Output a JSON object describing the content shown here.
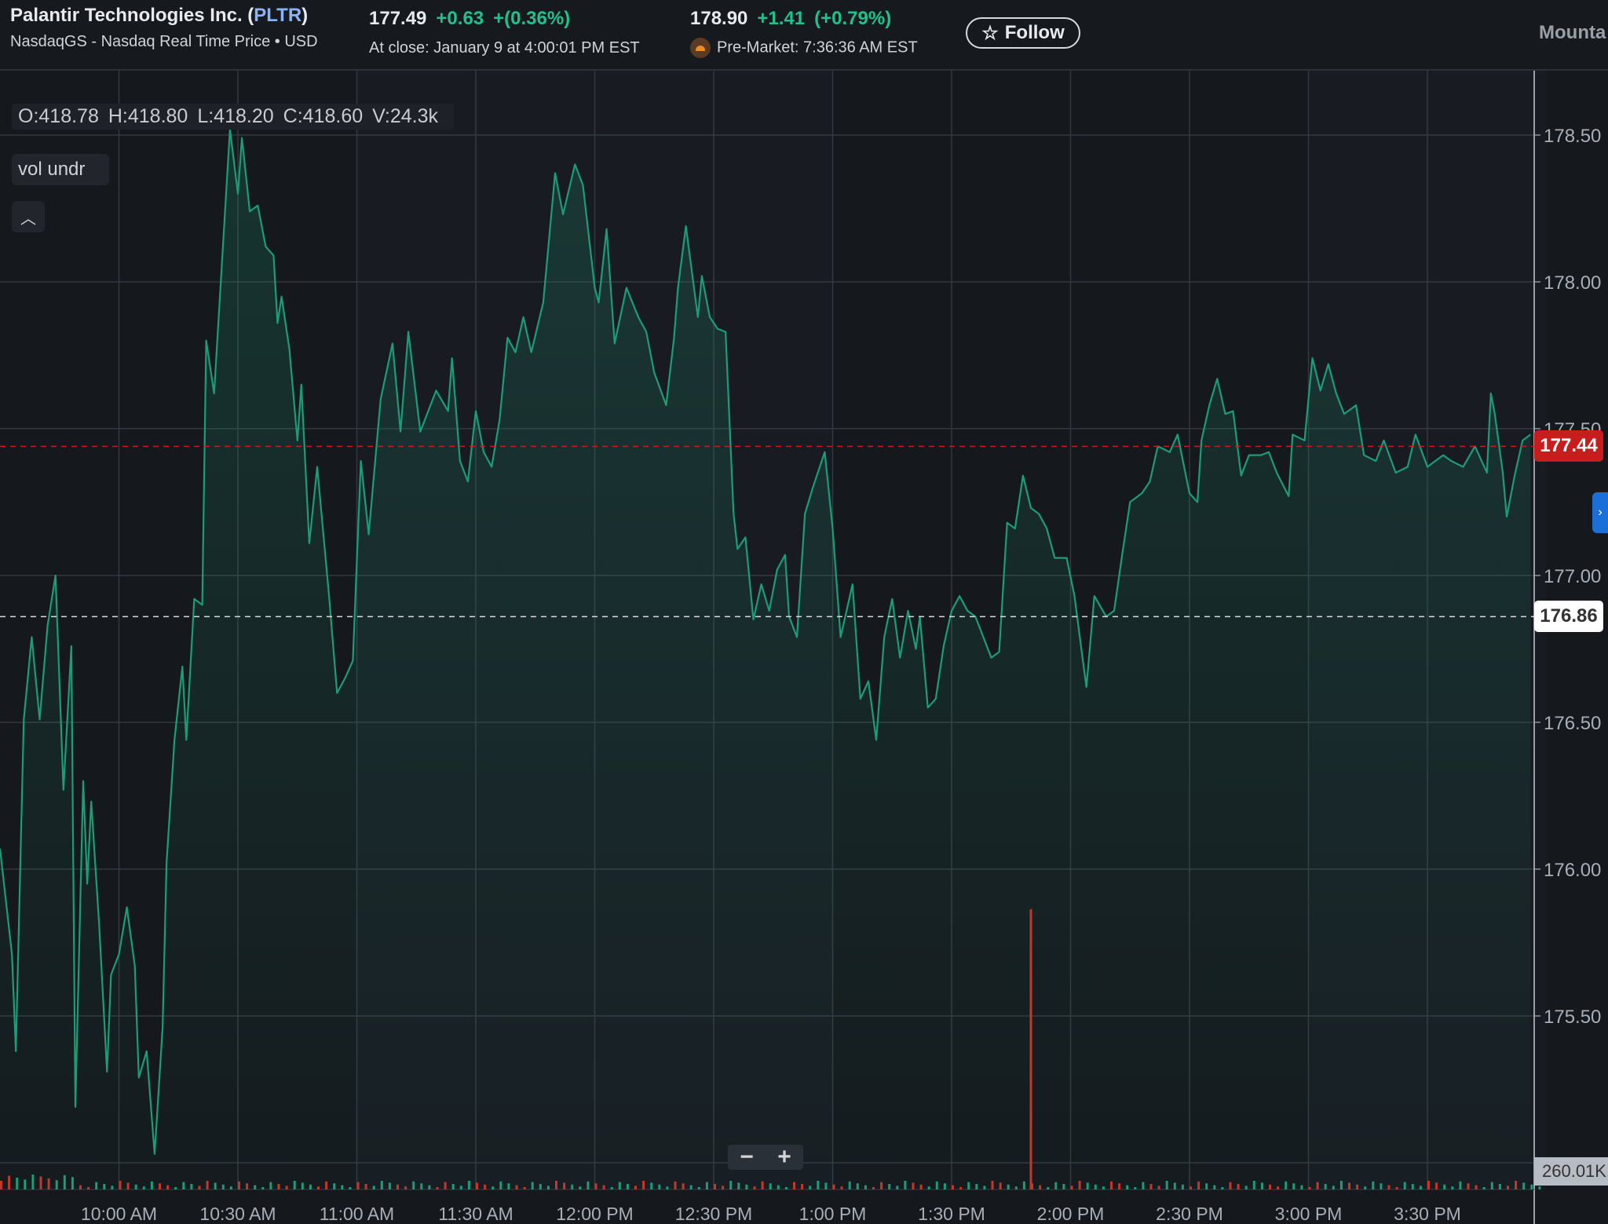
{
  "header": {
    "company": "Palantir Technologies Inc. (",
    "ticker": "PLTR",
    "close_paren": ")",
    "exchange": "NasdaqGS - Nasdaq Real Time Price • USD",
    "close_price": "177.49",
    "close_change": "+0.63",
    "close_change_pct": "+(0.36%)",
    "close_note": "At close: January 9 at 4:00:01 PM EST",
    "pre_price": "178.90",
    "pre_change": "+1.41",
    "pre_change_pct": "(+0.79%)",
    "pre_note": "Pre-Market: 7:36:36 AM EST",
    "follow_label": "Follow",
    "follow_icon": "star-outline-icon",
    "premarket_icon": "sunrise-icon",
    "cut_text": "Mounta"
  },
  "overlay": {
    "o": "O:418.78",
    "h": "H:418.80",
    "l": "L:418.20",
    "c": "C:418.60",
    "v": "V:24.3k",
    "indicator": "vol undr",
    "collapse_icon": "chevron-up-icon"
  },
  "controls": {
    "zoom_out": "−",
    "zoom_in": "+",
    "side_tab_icon": "chevron-right-icon"
  },
  "colors": {
    "line": "#1c9c78",
    "up": "#1fc28a",
    "down": "#c81d1d",
    "accent": "#8ab4f8",
    "background": "#15181d"
  },
  "chart_data": {
    "type": "area",
    "x_ticks": [
      "10:00 AM",
      "10:30 AM",
      "11:00 AM",
      "11:30 AM",
      "12:00 PM",
      "12:30 PM",
      "1:00 PM",
      "1:30 PM",
      "2:00 PM",
      "2:30 PM",
      "3:00 PM",
      "3:30 PM"
    ],
    "y_ticks": [
      "178.50",
      "178.00",
      "177.50",
      "177.00",
      "176.50",
      "176.00",
      "175.50"
    ],
    "ylim": [
      175.0,
      178.7
    ],
    "xlim": [
      "09:30",
      "16:00"
    ],
    "grid": true,
    "current_price_label": "177.44",
    "current_price": 177.44,
    "previous_close_label": "176.86",
    "previous_close": 176.86,
    "volume_axis_label": "260.01K",
    "series": [
      {
        "time": [
          "09:30",
          "09:33",
          "09:34",
          "09:36",
          "09:38",
          "09:40",
          "09:42",
          "09:44",
          "09:46",
          "09:48",
          "09:49",
          "09:51",
          "09:52",
          "09:53",
          "09:55",
          "09:57",
          "09:58",
          "10:00",
          "10:02",
          "10:04",
          "10:05",
          "10:07",
          "10:09",
          "10:11",
          "10:12",
          "10:14",
          "10:16",
          "10:17",
          "10:19",
          "10:21",
          "10:22",
          "10:24",
          "10:26",
          "10:28",
          "10:30",
          "10:31",
          "10:33",
          "10:35",
          "10:37",
          "10:39",
          "10:40",
          "10:41",
          "10:43",
          "10:45",
          "10:46",
          "10:48",
          "10:50",
          "10:53",
          "10:55",
          "10:57",
          "10:59",
          "11:01",
          "11:03",
          "11:06",
          "11:09",
          "11:11",
          "11:13",
          "11:16",
          "11:18",
          "11:20",
          "11:23",
          "11:24",
          "11:26",
          "11:28",
          "11:30",
          "11:32",
          "11:34",
          "11:36",
          "11:38",
          "11:40",
          "11:42",
          "11:44",
          "11:47",
          "11:50",
          "11:52",
          "11:55",
          "11:57",
          "12:00",
          "12:01",
          "12:03",
          "12:05",
          "12:08",
          "12:11",
          "12:13",
          "12:15",
          "12:18",
          "12:20",
          "12:21",
          "12:23",
          "12:26",
          "12:27",
          "12:29",
          "12:31",
          "12:33",
          "12:35",
          "12:36",
          "12:38",
          "12:40",
          "12:42",
          "12:44",
          "12:46",
          "12:48",
          "12:49",
          "12:51",
          "12:53",
          "12:55",
          "12:58",
          "13:00",
          "13:02",
          "13:05",
          "13:07",
          "13:09",
          "13:11",
          "13:13",
          "13:15",
          "13:17",
          "13:19",
          "13:21",
          "13:22",
          "13:24",
          "13:26",
          "13:28",
          "13:30",
          "13:32",
          "13:34",
          "13:36",
          "13:38",
          "13:40",
          "13:42",
          "13:44",
          "13:46",
          "13:48",
          "13:50",
          "13:52",
          "13:54",
          "13:56",
          "13:59",
          "14:01",
          "14:03",
          "14:04",
          "14:06",
          "14:09",
          "14:11",
          "14:13",
          "14:15",
          "14:18",
          "14:20",
          "14:22",
          "14:25",
          "14:27",
          "14:30",
          "14:32",
          "14:33",
          "14:35",
          "14:37",
          "14:39",
          "14:41",
          "14:43",
          "14:45",
          "14:48",
          "14:50",
          "14:52",
          "14:55",
          "14:56",
          "14:59",
          "15:01",
          "15:03",
          "15:05",
          "15:07",
          "15:09",
          "15:12",
          "15:14",
          "15:17",
          "15:19",
          "15:22",
          "15:25",
          "15:27",
          "15:30",
          "15:32",
          "15:34",
          "15:36",
          "15:39",
          "15:42",
          "15:45",
          "15:46",
          "15:47",
          "15:49",
          "15:50",
          "15:52",
          "15:54",
          "15:56"
        ],
        "price": [
          176.07,
          175.71,
          175.38,
          176.51,
          176.79,
          176.51,
          176.83,
          177.0,
          176.27,
          176.76,
          175.19,
          176.3,
          175.95,
          176.23,
          175.81,
          175.31,
          175.64,
          175.71,
          175.87,
          175.67,
          175.29,
          175.38,
          175.03,
          175.46,
          176.02,
          176.44,
          176.69,
          176.44,
          176.92,
          176.9,
          177.8,
          177.62,
          178.07,
          178.52,
          178.3,
          178.49,
          178.24,
          178.26,
          178.12,
          178.09,
          177.86,
          177.95,
          177.77,
          177.46,
          177.65,
          177.11,
          177.37,
          176.93,
          176.6,
          176.65,
          176.71,
          177.39,
          177.14,
          177.6,
          177.79,
          177.49,
          177.83,
          177.49,
          177.56,
          177.63,
          177.56,
          177.74,
          177.39,
          177.32,
          177.56,
          177.42,
          177.37,
          177.53,
          177.81,
          177.76,
          177.88,
          177.76,
          177.93,
          178.37,
          178.23,
          178.4,
          178.33,
          177.98,
          177.93,
          178.18,
          177.79,
          177.98,
          177.88,
          177.83,
          177.69,
          177.58,
          177.81,
          177.98,
          178.19,
          177.88,
          178.02,
          177.88,
          177.84,
          177.83,
          177.21,
          177.09,
          177.13,
          176.85,
          176.97,
          176.88,
          177.02,
          177.07,
          176.86,
          176.79,
          177.21,
          177.3,
          177.42,
          177.16,
          176.79,
          176.97,
          176.58,
          176.64,
          176.44,
          176.79,
          176.92,
          176.72,
          176.88,
          176.75,
          176.86,
          176.55,
          176.58,
          176.76,
          176.88,
          176.93,
          176.88,
          176.86,
          176.79,
          176.72,
          176.74,
          177.18,
          177.16,
          177.34,
          177.23,
          177.21,
          177.16,
          177.06,
          177.06,
          176.93,
          176.72,
          176.62,
          176.93,
          176.86,
          176.88,
          177.07,
          177.25,
          177.28,
          177.32,
          177.44,
          177.42,
          177.48,
          177.28,
          177.25,
          177.46,
          177.58,
          177.67,
          177.55,
          177.56,
          177.34,
          177.41,
          177.41,
          177.42,
          177.35,
          177.27,
          177.48,
          177.46,
          177.74,
          177.63,
          177.72,
          177.62,
          177.55,
          177.58,
          177.41,
          177.39,
          177.46,
          177.35,
          177.37,
          177.48,
          177.37,
          177.39,
          177.41,
          177.39,
          177.37,
          177.44,
          177.35,
          177.62,
          177.55,
          177.35,
          177.2,
          177.34,
          177.46,
          177.48
        ]
      }
    ]
  }
}
